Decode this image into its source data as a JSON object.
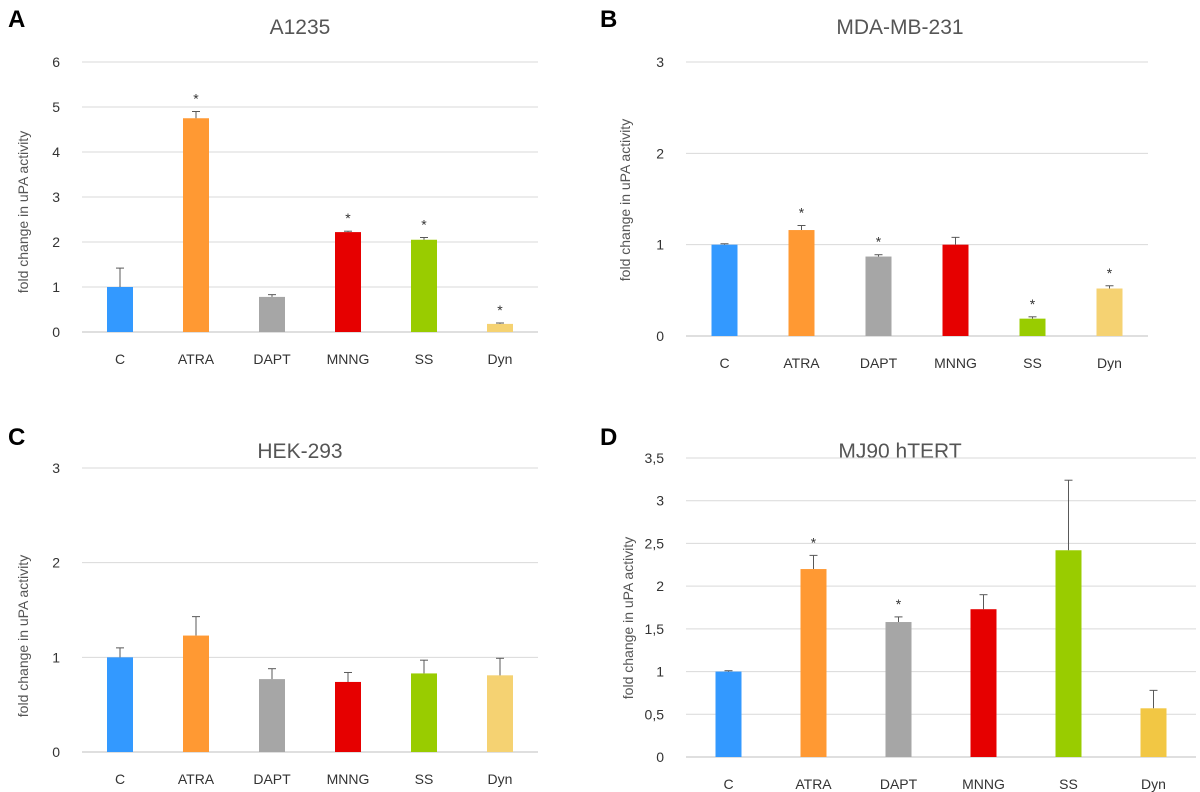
{
  "colors": [
    "#3399ff",
    "#ff9933",
    "#a6a6a6",
    "#e60000",
    "#99cc00",
    "#f5d272"
  ],
  "colors_d": [
    "#3399ff",
    "#ff9933",
    "#a6a6a6",
    "#e60000",
    "#99cc00",
    "#f2c744"
  ],
  "chart_data": [
    {
      "panel": "A",
      "type": "bar",
      "title": "A1235",
      "ylabel": "fold change in uPA activity",
      "categories": [
        "C",
        "ATRA",
        "DAPT",
        "MNNG",
        "SS",
        "Dyn"
      ],
      "values": [
        1.0,
        4.75,
        0.78,
        2.22,
        2.05,
        0.18
      ],
      "errors": [
        0.42,
        0.15,
        0.05,
        0.02,
        0.05,
        0.02
      ],
      "significant": [
        false,
        true,
        false,
        true,
        true,
        true
      ],
      "ylim": [
        0,
        6
      ],
      "yticks": [
        0,
        1,
        2,
        3,
        4,
        5,
        6
      ],
      "ytick_labels": [
        "0",
        "1",
        "2",
        "3",
        "4",
        "5",
        "6"
      ],
      "sig_marker": "*",
      "grid": true
    },
    {
      "panel": "B",
      "type": "bar",
      "title": "MDA-MB-231",
      "ylabel": "fold change in uPA activity",
      "categories": [
        "C",
        "ATRA",
        "DAPT",
        "MNNG",
        "SS",
        "Dyn"
      ],
      "values": [
        1.0,
        1.16,
        0.87,
        1.0,
        0.19,
        0.52
      ],
      "errors": [
        0.01,
        0.05,
        0.02,
        0.08,
        0.02,
        0.03
      ],
      "significant": [
        false,
        true,
        true,
        false,
        true,
        true
      ],
      "ylim": [
        0,
        3
      ],
      "yticks": [
        0,
        1,
        2,
        3
      ],
      "ytick_labels": [
        "0",
        "1",
        "2",
        "3"
      ],
      "sig_marker": "*",
      "grid": true
    },
    {
      "panel": "C",
      "type": "bar",
      "title": "HEK-293",
      "ylabel": "fold change in uPA activity",
      "categories": [
        "C",
        "ATRA",
        "DAPT",
        "MNNG",
        "SS",
        "Dyn"
      ],
      "values": [
        1.0,
        1.23,
        0.77,
        0.74,
        0.83,
        0.81
      ],
      "errors": [
        0.1,
        0.2,
        0.11,
        0.1,
        0.14,
        0.18
      ],
      "significant": [
        false,
        false,
        false,
        false,
        false,
        false
      ],
      "ylim": [
        0,
        3
      ],
      "yticks": [
        0,
        1,
        2,
        3
      ],
      "ytick_labels": [
        "0",
        "1",
        "2",
        "3"
      ],
      "sig_marker": "*",
      "grid": true
    },
    {
      "panel": "D",
      "type": "bar",
      "title": "MJ90 hTERT",
      "ylabel": "fold change in uPA activity",
      "categories": [
        "C",
        "ATRA",
        "DAPT",
        "MNNG",
        "SS",
        "Dyn"
      ],
      "values": [
        1.0,
        2.2,
        1.58,
        1.73,
        2.42,
        0.57
      ],
      "errors": [
        0.01,
        0.16,
        0.06,
        0.17,
        0.82,
        0.21
      ],
      "significant": [
        false,
        true,
        true,
        false,
        false,
        false
      ],
      "ylim": [
        0,
        3.5
      ],
      "yticks": [
        0,
        0.5,
        1,
        1.5,
        2,
        2.5,
        3,
        3.5
      ],
      "ytick_labels": [
        "0",
        "0,5",
        "1",
        "1,5",
        "2",
        "2,5",
        "3",
        "3,5"
      ],
      "sig_marker": "*",
      "grid": true
    }
  ]
}
